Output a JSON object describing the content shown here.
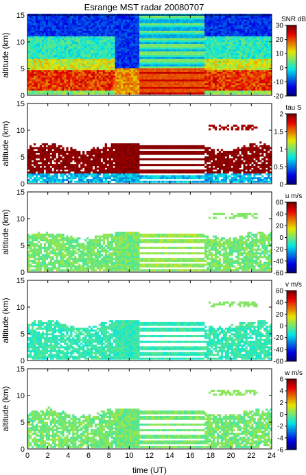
{
  "chart_data": {
    "type": "heatmap",
    "title": "Esrange MST radar 20080707",
    "xlabel": "time (UT)",
    "x_ticks": [
      0,
      2,
      4,
      6,
      8,
      10,
      12,
      14,
      16,
      18,
      20,
      22,
      24
    ],
    "xlim": [
      0,
      24
    ],
    "panels": [
      {
        "name": "snr",
        "ylabel": "altitude (km)",
        "ylim": [
          0,
          15
        ],
        "y_ticks": [
          0,
          5,
          10,
          15
        ],
        "colorbar": {
          "label": "SNR dB",
          "min": -20,
          "max": 30,
          "ticks": [
            30,
            20,
            10,
            0,
            -10,
            -20
          ]
        }
      },
      {
        "name": "tau",
        "ylabel": "altitude (km)",
        "ylim": [
          0,
          15
        ],
        "y_ticks": [
          0,
          5,
          10,
          15
        ],
        "colorbar": {
          "label": "tau S",
          "min": 0,
          "max": 2,
          "ticks": [
            2,
            1.5,
            1,
            0.5,
            0
          ]
        }
      },
      {
        "name": "u",
        "ylabel": "altitude (km)",
        "ylim": [
          0,
          15
        ],
        "y_ticks": [
          0,
          5,
          10,
          15
        ],
        "colorbar": {
          "label": "u m/s",
          "min": -60,
          "max": 60,
          "ticks": [
            60,
            40,
            20,
            0,
            -20,
            -40,
            -60
          ]
        }
      },
      {
        "name": "v",
        "ylabel": "altitude (km)",
        "ylim": [
          0,
          15
        ],
        "y_ticks": [
          0,
          5,
          10,
          15
        ],
        "colorbar": {
          "label": "v m/s",
          "min": -60,
          "max": 60,
          "ticks": [
            60,
            40,
            20,
            0,
            -20,
            -40,
            -60
          ]
        }
      },
      {
        "name": "w",
        "ylabel": "altitude (km)",
        "ylim": [
          0,
          15
        ],
        "y_ticks": [
          0,
          5,
          10,
          15
        ],
        "colorbar": {
          "label": "w m/s",
          "min": -6,
          "max": 6,
          "ticks": [
            6,
            4,
            2,
            0,
            -2,
            -4,
            -6
          ]
        }
      }
    ]
  }
}
